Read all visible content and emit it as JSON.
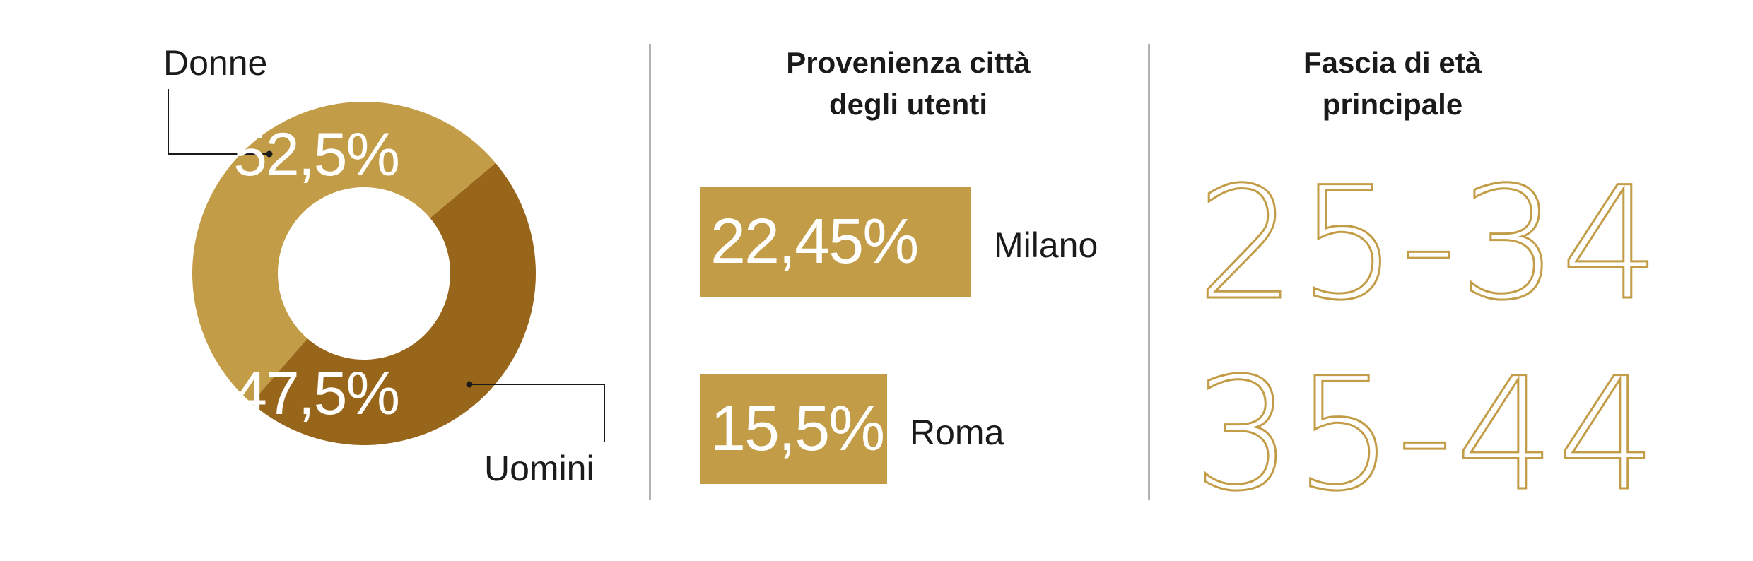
{
  "chart_data": [
    {
      "type": "pie",
      "categories": [
        "Donne",
        "Uomini"
      ],
      "values": [
        52.5,
        47.5
      ],
      "value_labels": [
        "52,5%",
        "47,5%"
      ],
      "colors": [
        "#c29c46",
        "#98661a"
      ],
      "donut": true
    },
    {
      "type": "bar",
      "title": "Provenienza città degli utenti",
      "title_lines": [
        "Provenienza città",
        "degli utenti"
      ],
      "categories": [
        "Milano",
        "Roma"
      ],
      "values": [
        22.45,
        15.5
      ],
      "value_labels": [
        "22,45%",
        "15,5%"
      ],
      "orientation": "horizontal",
      "color": "#c29c46"
    }
  ],
  "age_panel": {
    "title_lines": [
      "Fascia di età",
      "principale"
    ],
    "ranges": [
      "25-34",
      "35-44"
    ],
    "color": "#c29c46"
  }
}
